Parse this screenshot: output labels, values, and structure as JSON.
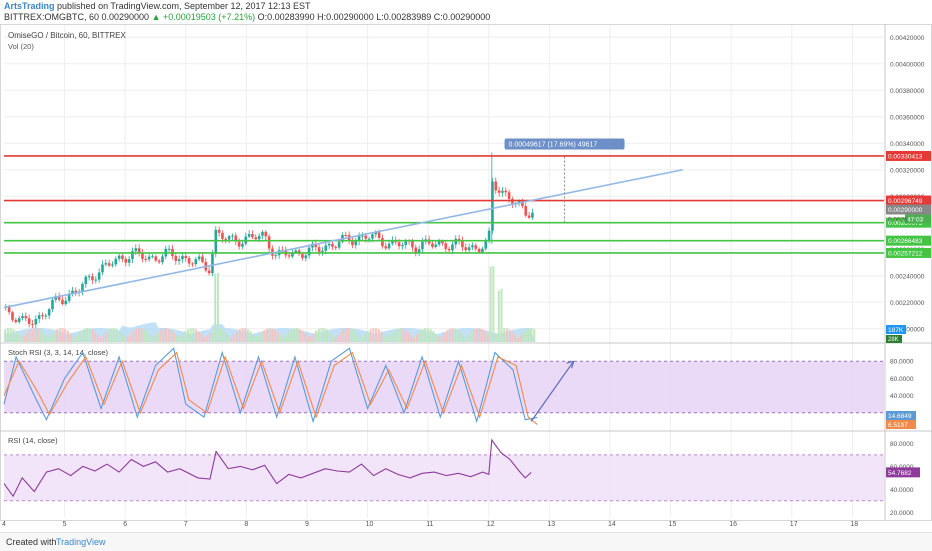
{
  "header": {
    "author": "ArtsTrading",
    "published": "published on TradingView.com, September 12, 2017 12:13 EST",
    "symbol_line": "BITTREX:OMGBTC, 60  0.00290000",
    "change": "▲ +0.00019503 (+7.21%)",
    "ohlc": "O:0.00283990  H:0.00290000  L:0.00283989  C:0.00290000"
  },
  "footer": {
    "created_with": "Created with",
    "brand": "TradingView"
  },
  "colors": {
    "candle_up": "#26a69a",
    "candle_down": "#ef5350",
    "resistance": "#e53935",
    "support": "#43c443",
    "trendline": "#94b8e6",
    "stoch_k": "#5b9bd5",
    "stoch_d": "#f08a4b",
    "rsi": "#8e3b9c",
    "volume_ma": "#aed7f4"
  },
  "chart_data": [
    {
      "type": "candlestick",
      "title": "OmiseGO / Bitcoin, 60, BITTREX",
      "subtitle": "Vol (20)",
      "x_ticks": [
        "4",
        "5",
        "6",
        "7",
        "8",
        "9",
        "10",
        "11",
        "12",
        "13",
        "14",
        "15",
        "16",
        "17",
        "18"
      ],
      "y_ticks": [
        "0.00420000",
        "0.00400000",
        "0.00380000",
        "0.00360000",
        "0.00340000",
        "0.00320000",
        "0.00300000",
        "0.00280000",
        "0.00260000",
        "0.00240000",
        "0.00220000",
        "0.00200000"
      ],
      "ylim": [
        0.0019,
        0.0043
      ],
      "price_path": [
        [
          4.0,
          0.00216
        ],
        [
          4.3,
          0.00204
        ],
        [
          4.6,
          0.00209
        ],
        [
          4.9,
          0.00222
        ],
        [
          5.2,
          0.00228
        ],
        [
          5.5,
          0.00242
        ],
        [
          5.8,
          0.0025
        ],
        [
          6.1,
          0.00257
        ],
        [
          6.4,
          0.00253
        ],
        [
          6.7,
          0.00256
        ],
        [
          7.0,
          0.00253
        ],
        [
          7.4,
          0.00246
        ],
        [
          7.5,
          0.00274
        ],
        [
          7.7,
          0.00266
        ],
        [
          8.0,
          0.00268
        ],
        [
          8.3,
          0.0027
        ],
        [
          8.5,
          0.00255
        ],
        [
          8.8,
          0.00257
        ],
        [
          9.1,
          0.00259
        ],
        [
          9.5,
          0.00265
        ],
        [
          10.0,
          0.0027
        ],
        [
          10.4,
          0.00264
        ],
        [
          10.8,
          0.00263
        ],
        [
          11.3,
          0.00264
        ],
        [
          11.8,
          0.00261
        ],
        [
          12.0,
          0.00264
        ],
        [
          12.05,
          0.0031
        ],
        [
          12.2,
          0.00305
        ],
        [
          12.4,
          0.00296
        ],
        [
          12.6,
          0.00287
        ],
        [
          12.7,
          0.0029
        ]
      ],
      "horizontal_levels": [
        {
          "label": "0.00330413",
          "value": 0.00330413,
          "color": "#e53935"
        },
        {
          "label": "0.00296749",
          "value": 0.00296749,
          "color": "#e53935"
        },
        {
          "label": "0.00280073",
          "value": 0.00280073,
          "color": "#43c443"
        },
        {
          "label": "0.00266483",
          "value": 0.00266483,
          "color": "#43c443"
        },
        {
          "label": "0.00257212",
          "value": 0.00257212,
          "color": "#43c443"
        }
      ],
      "trendline": [
        [
          4.0,
          0.00216
        ],
        [
          15.2,
          0.0032
        ]
      ],
      "last_price_label": "0.00290000",
      "countdown_label": "47:03",
      "partial_label": "0.0028",
      "measure": {
        "label": "0.00049617 (17.69%) 49617",
        "x": 13.25,
        "from": 0.0028,
        "to": 0.0033
      },
      "volume": {
        "ticks": [
          "187K",
          "28K"
        ]
      }
    },
    {
      "type": "line",
      "title": "Stoch RSI (3, 3, 14, 14, close)",
      "y_ticks": [
        "80.0000",
        "60.0000",
        "40.0000",
        "20.0000"
      ],
      "ylim": [
        0,
        100
      ],
      "bands": [
        20,
        80
      ],
      "series": [
        {
          "values_label": "14.6849",
          "color": "#5b9bd5",
          "cycles": [
            [
              4.0,
              30
            ],
            [
              4.2,
              85
            ],
            [
              4.5,
              40
            ],
            [
              4.7,
              12
            ],
            [
              5.0,
              60
            ],
            [
              5.3,
              90
            ],
            [
              5.6,
              25
            ],
            [
              5.9,
              85
            ],
            [
              6.2,
              15
            ],
            [
              6.5,
              75
            ],
            [
              6.8,
              95
            ],
            [
              7.0,
              30
            ],
            [
              7.3,
              15
            ],
            [
              7.6,
              90
            ],
            [
              7.9,
              20
            ],
            [
              8.2,
              85
            ],
            [
              8.5,
              15
            ],
            [
              8.8,
              85
            ],
            [
              9.1,
              10
            ],
            [
              9.4,
              80
            ],
            [
              9.7,
              95
            ],
            [
              10.0,
              25
            ],
            [
              10.3,
              75
            ],
            [
              10.6,
              20
            ],
            [
              10.9,
              85
            ],
            [
              11.2,
              15
            ],
            [
              11.5,
              80
            ],
            [
              11.8,
              10
            ],
            [
              12.1,
              90
            ],
            [
              12.4,
              70
            ],
            [
              12.6,
              12
            ],
            [
              12.8,
              14.7
            ]
          ]
        },
        {
          "values_label": "6.5197",
          "color": "#f08a4b",
          "cycles": [
            [
              4.0,
              40
            ],
            [
              4.25,
              80
            ],
            [
              4.55,
              45
            ],
            [
              4.75,
              18
            ],
            [
              5.05,
              55
            ],
            [
              5.35,
              85
            ],
            [
              5.65,
              30
            ],
            [
              5.95,
              80
            ],
            [
              6.25,
              20
            ],
            [
              6.55,
              70
            ],
            [
              6.85,
              90
            ],
            [
              7.05,
              35
            ],
            [
              7.35,
              20
            ],
            [
              7.65,
              85
            ],
            [
              7.95,
              25
            ],
            [
              8.25,
              80
            ],
            [
              8.55,
              20
            ],
            [
              8.85,
              80
            ],
            [
              9.15,
              15
            ],
            [
              9.45,
              75
            ],
            [
              9.75,
              90
            ],
            [
              10.05,
              30
            ],
            [
              10.35,
              70
            ],
            [
              10.65,
              25
            ],
            [
              10.95,
              80
            ],
            [
              11.25,
              20
            ],
            [
              11.55,
              75
            ],
            [
              11.85,
              15
            ],
            [
              12.15,
              85
            ],
            [
              12.45,
              75
            ],
            [
              12.65,
              15
            ],
            [
              12.8,
              6.5
            ]
          ]
        }
      ],
      "arrow": [
        [
          12.7,
          10
        ],
        [
          13.4,
          80
        ]
      ]
    },
    {
      "type": "line",
      "title": "RSI (14, close)",
      "y_ticks": [
        "80.0000",
        "60.0000",
        "40.0000",
        "20.0000"
      ],
      "ylim": [
        15,
        90
      ],
      "bands": [
        30,
        70
      ],
      "series": [
        {
          "values_label": "54.7682",
          "color": "#8e3b9c",
          "values": [
            [
              4.0,
              45
            ],
            [
              4.15,
              34
            ],
            [
              4.3,
              50
            ],
            [
              4.5,
              38
            ],
            [
              4.7,
              55
            ],
            [
              4.9,
              58
            ],
            [
              5.1,
              52
            ],
            [
              5.3,
              60
            ],
            [
              5.5,
              56
            ],
            [
              5.7,
              62
            ],
            [
              5.9,
              55
            ],
            [
              6.1,
              66
            ],
            [
              6.3,
              60
            ],
            [
              6.5,
              64
            ],
            [
              6.7,
              55
            ],
            [
              6.9,
              58
            ],
            [
              7.2,
              50
            ],
            [
              7.4,
              49
            ],
            [
              7.5,
              73
            ],
            [
              7.7,
              58
            ],
            [
              7.9,
              60
            ],
            [
              8.1,
              57
            ],
            [
              8.3,
              61
            ],
            [
              8.5,
              45
            ],
            [
              8.7,
              53
            ],
            [
              8.9,
              50
            ],
            [
              9.1,
              54
            ],
            [
              9.3,
              58
            ],
            [
              9.5,
              56
            ],
            [
              9.7,
              55
            ],
            [
              9.9,
              62
            ],
            [
              10.1,
              52
            ],
            [
              10.3,
              58
            ],
            [
              10.5,
              53
            ],
            [
              10.7,
              50
            ],
            [
              10.9,
              54
            ],
            [
              11.1,
              55
            ],
            [
              11.3,
              52
            ],
            [
              11.5,
              54
            ],
            [
              11.7,
              51
            ],
            [
              11.9,
              55
            ],
            [
              12.0,
              53
            ],
            [
              12.05,
              83
            ],
            [
              12.2,
              72
            ],
            [
              12.35,
              66
            ],
            [
              12.5,
              56
            ],
            [
              12.6,
              50
            ],
            [
              12.7,
              54.8
            ]
          ]
        }
      ]
    }
  ]
}
